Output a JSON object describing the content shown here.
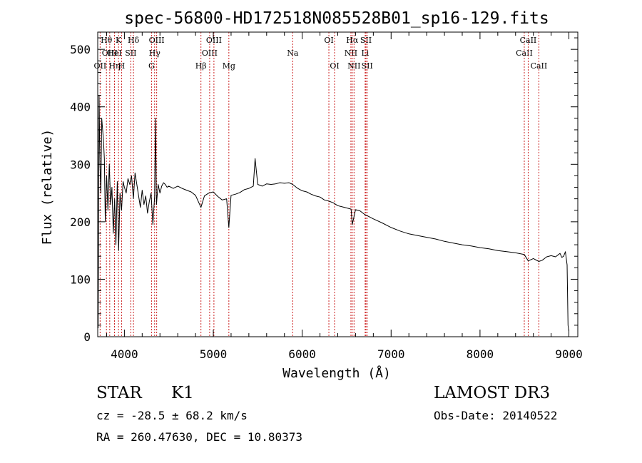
{
  "chart_data": {
    "type": "line",
    "title": "spec-56800-HD172518N085528B01_sp16-129.fits",
    "xlabel": "Wavelength (Å)",
    "ylabel": "Flux (relative)",
    "xlim": [
      3700,
      9100
    ],
    "ylim": [
      0,
      530
    ],
    "x_ticks": [
      4000,
      5000,
      6000,
      7000,
      8000,
      9000
    ],
    "y_ticks": [
      0,
      100,
      200,
      300,
      400,
      500
    ],
    "tick_labels": {
      "x": [
        "4000",
        "5000",
        "6000",
        "7000",
        "8000",
        "9000"
      ],
      "y": [
        "0",
        "100",
        "200",
        "300",
        "400",
        "500"
      ]
    },
    "spectrum": {
      "x": [
        3705,
        3715,
        3725,
        3735,
        3745,
        3755,
        3765,
        3775,
        3785,
        3800,
        3815,
        3830,
        3845,
        3860,
        3875,
        3890,
        3905,
        3920,
        3935,
        3950,
        3968,
        3985,
        4000,
        4020,
        4040,
        4060,
        4080,
        4101,
        4120,
        4140,
        4160,
        4180,
        4200,
        4220,
        4240,
        4260,
        4280,
        4300,
        4320,
        4340,
        4350,
        4360,
        4380,
        4400,
        4420,
        4440,
        4460,
        4480,
        4500,
        4550,
        4600,
        4650,
        4700,
        4750,
        4800,
        4861,
        4900,
        4950,
        5000,
        5050,
        5100,
        5150,
        5175,
        5200,
        5250,
        5300,
        5350,
        5400,
        5450,
        5470,
        5500,
        5550,
        5600,
        5650,
        5700,
        5750,
        5800,
        5850,
        5893,
        5950,
        6000,
        6050,
        6100,
        6150,
        6200,
        6250,
        6300,
        6350,
        6400,
        6450,
        6500,
        6550,
        6563,
        6600,
        6650,
        6700,
        6750,
        6800,
        6900,
        7000,
        7100,
        7200,
        7300,
        7400,
        7500,
        7600,
        7700,
        7800,
        7900,
        8000,
        8100,
        8200,
        8300,
        8400,
        8498,
        8542,
        8600,
        8662,
        8700,
        8750,
        8800,
        8850,
        8900,
        8920,
        8940,
        8960,
        8980,
        8990,
        9000
      ],
      "y": [
        15,
        420,
        300,
        250,
        380,
        360,
        340,
        310,
        200,
        280,
        220,
        300,
        230,
        260,
        180,
        240,
        160,
        270,
        150,
        250,
        220,
        270,
        260,
        250,
        275,
        265,
        280,
        240,
        285,
        265,
        245,
        225,
        255,
        230,
        245,
        215,
        235,
        250,
        195,
        245,
        380,
        230,
        265,
        250,
        262,
        268,
        265,
        260,
        262,
        258,
        262,
        258,
        255,
        252,
        246,
        225,
        245,
        250,
        252,
        244,
        238,
        240,
        190,
        246,
        248,
        251,
        256,
        258,
        262,
        310,
        265,
        262,
        266,
        265,
        266,
        268,
        267,
        268,
        265,
        258,
        254,
        252,
        248,
        245,
        243,
        238,
        236,
        233,
        228,
        226,
        224,
        222,
        195,
        221,
        219,
        213,
        209,
        205,
        198,
        190,
        184,
        179,
        176,
        173,
        170,
        166,
        163,
        160,
        158,
        155,
        153,
        150,
        148,
        146,
        143,
        132,
        136,
        131,
        133,
        139,
        141,
        139,
        145,
        138,
        140,
        148,
        125,
        20,
        10
      ]
    },
    "lines": [
      {
        "name": "OII",
        "x": 3727,
        "row": 2
      },
      {
        "name": "Hθ",
        "x": 3798,
        "row": 0
      },
      {
        "name": "OIII",
        "x": 3835,
        "row": 1
      },
      {
        "name": "Hη",
        "x": 3889,
        "row": 2
      },
      {
        "name": "K",
        "x": 3934,
        "row": 0
      },
      {
        "name": "HeI",
        "x": 3889,
        "row": 1
      },
      {
        "name": "H",
        "x": 3968,
        "row": 2
      },
      {
        "name": "SII",
        "x": 4072,
        "row": 1
      },
      {
        "name": "Hδ",
        "x": 4102,
        "row": 0
      },
      {
        "name": "G",
        "x": 4305,
        "row": 2
      },
      {
        "name": "Hγ",
        "x": 4340,
        "row": 1
      },
      {
        "name": "OIII",
        "x": 4363,
        "row": 0
      },
      {
        "name": "Hβ",
        "x": 4861,
        "row": 2
      },
      {
        "name": "OIII",
        "x": 4959,
        "row": 1
      },
      {
        "name": "OIII",
        "x": 5007,
        "row": 0
      },
      {
        "name": "Mg",
        "x": 5175,
        "row": 2
      },
      {
        "name": "Na",
        "x": 5893,
        "row": 1
      },
      {
        "name": "OI",
        "x": 6300,
        "row": 0
      },
      {
        "name": "OI",
        "x": 6364,
        "row": 2
      },
      {
        "name": "NII",
        "x": 6548,
        "row": 1
      },
      {
        "name": "Hα",
        "x": 6563,
        "row": 0
      },
      {
        "name": "NII",
        "x": 6583,
        "row": 2
      },
      {
        "name": "SII",
        "x": 6717,
        "row": 0
      },
      {
        "name": "Li",
        "x": 6708,
        "row": 1
      },
      {
        "name": "SII",
        "x": 6731,
        "row": 2
      },
      {
        "name": "CaII",
        "x": 8498,
        "row": 1
      },
      {
        "name": "CaII",
        "x": 8542,
        "row": 0
      },
      {
        "name": "CaII",
        "x": 8662,
        "row": 2
      }
    ]
  },
  "info": {
    "class": "STAR",
    "subclass": "K1",
    "survey": "LAMOST DR3",
    "cz": "cz = -28.5 ± 68.2 km/s",
    "obs_date": "Obs-Date: 20140522",
    "coords": "RA = 260.47630, DEC =  10.80373"
  }
}
